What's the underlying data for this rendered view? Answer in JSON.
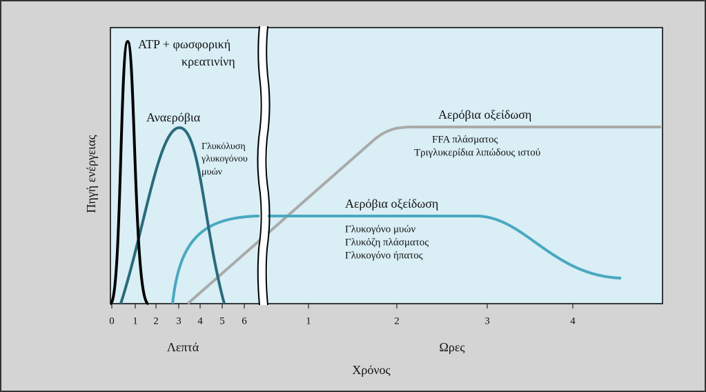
{
  "y_axis_label": "Πηγή ενέργειας",
  "x_axis_label": "Χρόνος",
  "minutes_label": "Λεπτά",
  "hours_label": "Ωρες",
  "minute_ticks": [
    "0",
    "1",
    "2",
    "3",
    "4",
    "5",
    "6"
  ],
  "hour_ticks": [
    "1",
    "2",
    "3",
    "4"
  ],
  "atp": {
    "line1": "ATP + φωσφορική",
    "line2": "κρεατινίνη"
  },
  "anaerobic": {
    "title": "Αναερόβια",
    "lines": [
      "Γλυκόλυση",
      "γλυκογόνου",
      "μυών"
    ]
  },
  "aerobic_fat": {
    "title": "Αερόβια οξείδωση",
    "lines": [
      "FFA πλάσματος",
      "Τριγλυκερίδια λιπώδους ιστού"
    ]
  },
  "aerobic_carb": {
    "title": "Αερόβια οξείδωση",
    "lines": [
      "Γλυκογόνο μυών",
      "Γλυκόζη πλάσματος",
      "Γλυκογόνο ήπατος"
    ]
  }
}
